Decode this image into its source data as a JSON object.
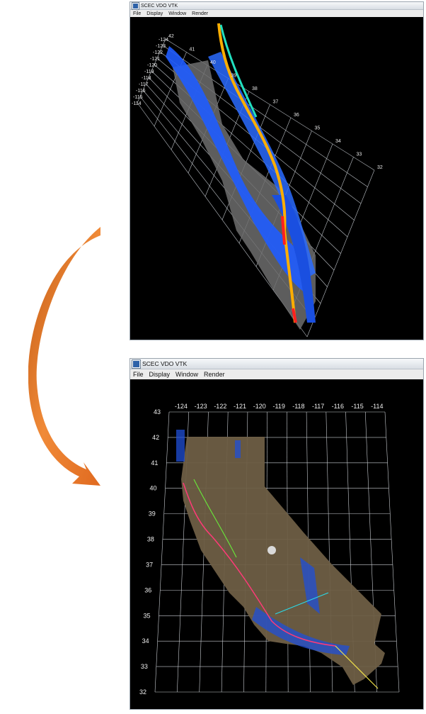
{
  "top_window": {
    "title": "SCEC VDO VTK",
    "menus": [
      "File",
      "Display",
      "Window",
      "Render"
    ],
    "lon_labels": [
      "-124",
      "-123",
      "-122",
      "-121",
      "-120",
      "-119",
      "-118",
      "-117",
      "-116",
      "-115",
      "-114"
    ],
    "lat_labels": [
      "42",
      "41",
      "40",
      "39",
      "38",
      "37",
      "36",
      "35",
      "34",
      "33",
      "32"
    ]
  },
  "bottom_window": {
    "title": "SCEC VDO VTK",
    "menus": [
      "File",
      "Display",
      "Window",
      "Render"
    ],
    "lon_labels": [
      "-124",
      "-123",
      "-122",
      "-121",
      "-120",
      "-119",
      "-118",
      "-117",
      "-116",
      "-115",
      "-114"
    ],
    "lat_labels": [
      "43",
      "42",
      "41",
      "40",
      "39",
      "38",
      "37",
      "36",
      "35",
      "34",
      "33",
      "32"
    ]
  },
  "colors": {
    "arrow": "#e07a2e",
    "fault_blue": "#1f5cff",
    "grid": "#cfd3d8",
    "terrain_gray": "#707070",
    "terrain_brown": "#6e5e44"
  }
}
